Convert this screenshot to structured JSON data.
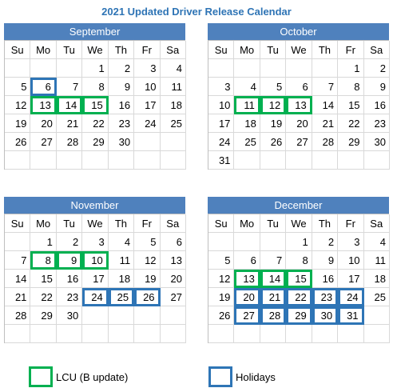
{
  "title": "2021 Updated Driver Release Calendar",
  "weekdays": [
    "Su",
    "Mo",
    "Tu",
    "We",
    "Th",
    "Fr",
    "Sa"
  ],
  "colors": {
    "header": "#4f81bd",
    "lcu": "#00b050",
    "holiday": "#2e75b6",
    "title": "#2e74b5"
  },
  "months": [
    {
      "name": "September",
      "weeks": [
        [
          "",
          "",
          "",
          "1",
          "2",
          "3",
          "4"
        ],
        [
          "5",
          "6",
          "7",
          "8",
          "9",
          "10",
          "11"
        ],
        [
          "12",
          "13",
          "14",
          "15",
          "16",
          "17",
          "18"
        ],
        [
          "19",
          "20",
          "21",
          "22",
          "23",
          "24",
          "25"
        ],
        [
          "26",
          "27",
          "28",
          "29",
          "30",
          "",
          ""
        ],
        [
          "",
          "",
          "",
          "",
          "",
          "",
          ""
        ]
      ],
      "lcu": [
        "13",
        "14",
        "15"
      ],
      "holidays": [
        "6"
      ]
    },
    {
      "name": "October",
      "weeks": [
        [
          "",
          "",
          "",
          "",
          "",
          "1",
          "2"
        ],
        [
          "3",
          "4",
          "5",
          "6",
          "7",
          "8",
          "9"
        ],
        [
          "10",
          "11",
          "12",
          "13",
          "14",
          "15",
          "16"
        ],
        [
          "17",
          "18",
          "19",
          "20",
          "21",
          "22",
          "23"
        ],
        [
          "24",
          "25",
          "26",
          "27",
          "28",
          "29",
          "30"
        ],
        [
          "31",
          "",
          "",
          "",
          "",
          "",
          ""
        ]
      ],
      "lcu": [
        "11",
        "12",
        "13"
      ],
      "holidays": []
    },
    {
      "name": "November",
      "weeks": [
        [
          "",
          "1",
          "2",
          "3",
          "4",
          "5",
          "6"
        ],
        [
          "7",
          "8",
          "9",
          "10",
          "11",
          "12",
          "13"
        ],
        [
          "14",
          "15",
          "16",
          "17",
          "18",
          "19",
          "20"
        ],
        [
          "21",
          "22",
          "23",
          "24",
          "25",
          "26",
          "27"
        ],
        [
          "28",
          "29",
          "30",
          "",
          "",
          "",
          ""
        ],
        [
          "",
          "",
          "",
          "",
          "",
          "",
          ""
        ]
      ],
      "lcu": [
        "8",
        "9",
        "10"
      ],
      "holidays": [
        "24",
        "25",
        "26"
      ]
    },
    {
      "name": "December",
      "weeks": [
        [
          "",
          "",
          "",
          "1",
          "2",
          "3",
          "4"
        ],
        [
          "5",
          "6",
          "7",
          "8",
          "9",
          "10",
          "11"
        ],
        [
          "12",
          "13",
          "14",
          "15",
          "16",
          "17",
          "18"
        ],
        [
          "19",
          "20",
          "21",
          "22",
          "23",
          "24",
          "25"
        ],
        [
          "26",
          "27",
          "28",
          "29",
          "30",
          "31",
          ""
        ],
        [
          "",
          "",
          "",
          "",
          "",
          "",
          ""
        ]
      ],
      "lcu": [
        "13",
        "14",
        "15"
      ],
      "holidays": [
        "20",
        "21",
        "22",
        "23",
        "24",
        "27",
        "28",
        "29",
        "30",
        "31"
      ]
    }
  ],
  "legend": {
    "lcu_label": "LCU (B update)",
    "holiday_label": "Holidays"
  }
}
